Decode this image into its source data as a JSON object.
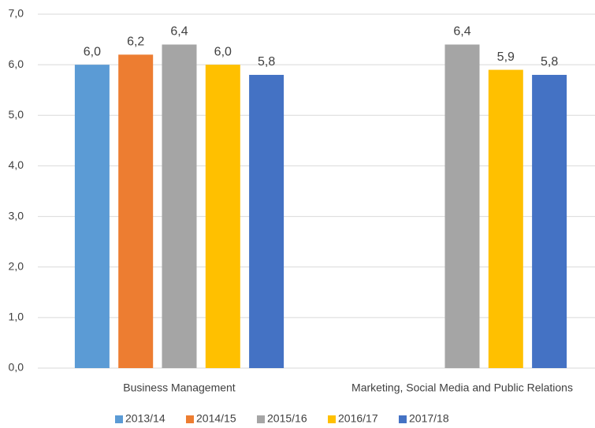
{
  "chart_data": {
    "type": "bar",
    "categories": [
      "Business Management",
      "Marketing, Social Media and Public Relations"
    ],
    "series": [
      {
        "name": "2013/14",
        "color": "#5b9bd5",
        "values": [
          6.0,
          null
        ],
        "value_labels": [
          "6,0",
          null
        ]
      },
      {
        "name": "2014/15",
        "color": "#ed7d31",
        "values": [
          6.2,
          null
        ],
        "value_labels": [
          "6,2",
          null
        ]
      },
      {
        "name": "2015/16",
        "color": "#a5a5a5",
        "values": [
          6.4,
          6.4
        ],
        "value_labels": [
          "6,4",
          "6,4"
        ]
      },
      {
        "name": "2016/17",
        "color": "#ffc000",
        "values": [
          6.0,
          5.9
        ],
        "value_labels": [
          "6,0",
          "5,9"
        ]
      },
      {
        "name": "2017/18",
        "color": "#4472c4",
        "values": [
          5.8,
          5.8
        ],
        "value_labels": [
          "5,8",
          "5,8"
        ]
      }
    ],
    "ylim": [
      0,
      7
    ],
    "yticks": [
      {
        "value": 0,
        "label": "0,0"
      },
      {
        "value": 1,
        "label": "1,0"
      },
      {
        "value": 2,
        "label": "2,0"
      },
      {
        "value": 3,
        "label": "3,0"
      },
      {
        "value": 4,
        "label": "4,0"
      },
      {
        "value": 5,
        "label": "5,0"
      },
      {
        "value": 6,
        "label": "6,0"
      },
      {
        "value": 7,
        "label": "7,0"
      }
    ],
    "grid": true,
    "legend": "bottom"
  }
}
